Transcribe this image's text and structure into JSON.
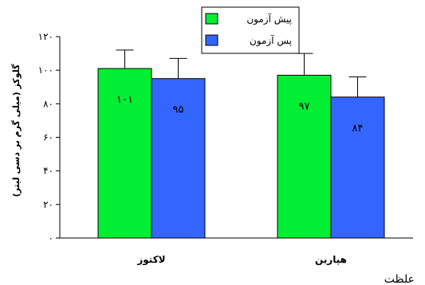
{
  "chart_data": {
    "type": "bar",
    "categories": [
      "لاکتوز",
      "هپارین"
    ],
    "series": [
      {
        "name": "پیش آزمون",
        "color": "#00ee33",
        "values": [
          101,
          97
        ],
        "errors": [
          11,
          13
        ],
        "labels": [
          "۱۰۱",
          "۹۷"
        ]
      },
      {
        "name": "پس آزمون",
        "color": "#3366ff",
        "values": [
          95,
          84
        ],
        "errors": [
          12,
          12
        ],
        "labels": [
          "۹۵",
          "۸۴"
        ]
      }
    ],
    "ylabel": "گلوکز (میلی گرم بر دسی لیتر)",
    "ylim": [
      0,
      120
    ],
    "yticks": [
      0,
      20,
      40,
      60,
      80,
      100,
      120
    ],
    "ytick_labels": [
      "۰",
      "۲۰",
      "۴۰",
      "۶۰",
      "۸۰",
      "۱۰۰",
      "۱۲۰"
    ],
    "legend_position": "top-center",
    "grid": false
  },
  "footer": {
    "text": "علظت"
  }
}
